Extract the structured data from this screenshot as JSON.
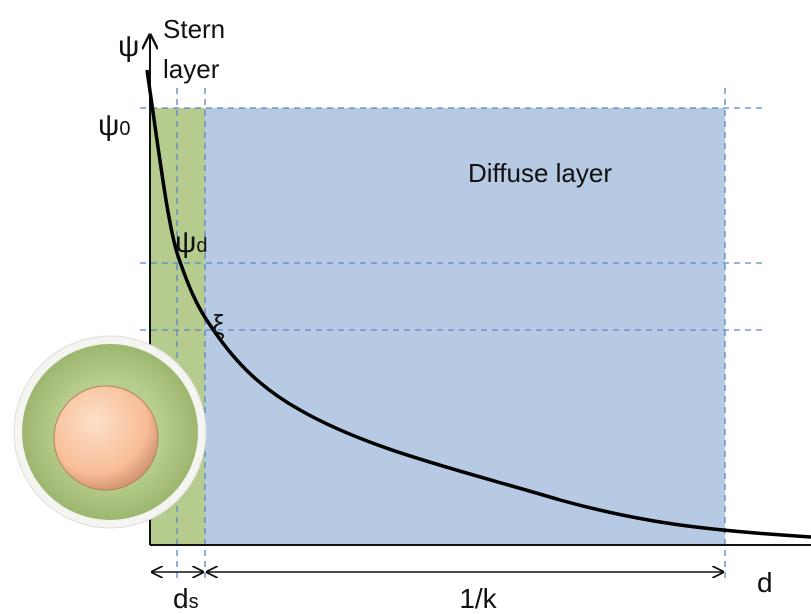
{
  "axis": {
    "y_label": "ψ",
    "x_label": "d"
  },
  "stern_layer": {
    "line1": "Stern",
    "line2": "layer"
  },
  "psi0": {
    "symbol": "ψ",
    "subscript": "0"
  },
  "psid": {
    "symbol": "ψ",
    "subscript": "d"
  },
  "zeta": "ξ",
  "diffuse_layer": "Diffuse layer",
  "ds": {
    "symbol": "d",
    "subscript": "s"
  },
  "debye_length": "1/k"
}
